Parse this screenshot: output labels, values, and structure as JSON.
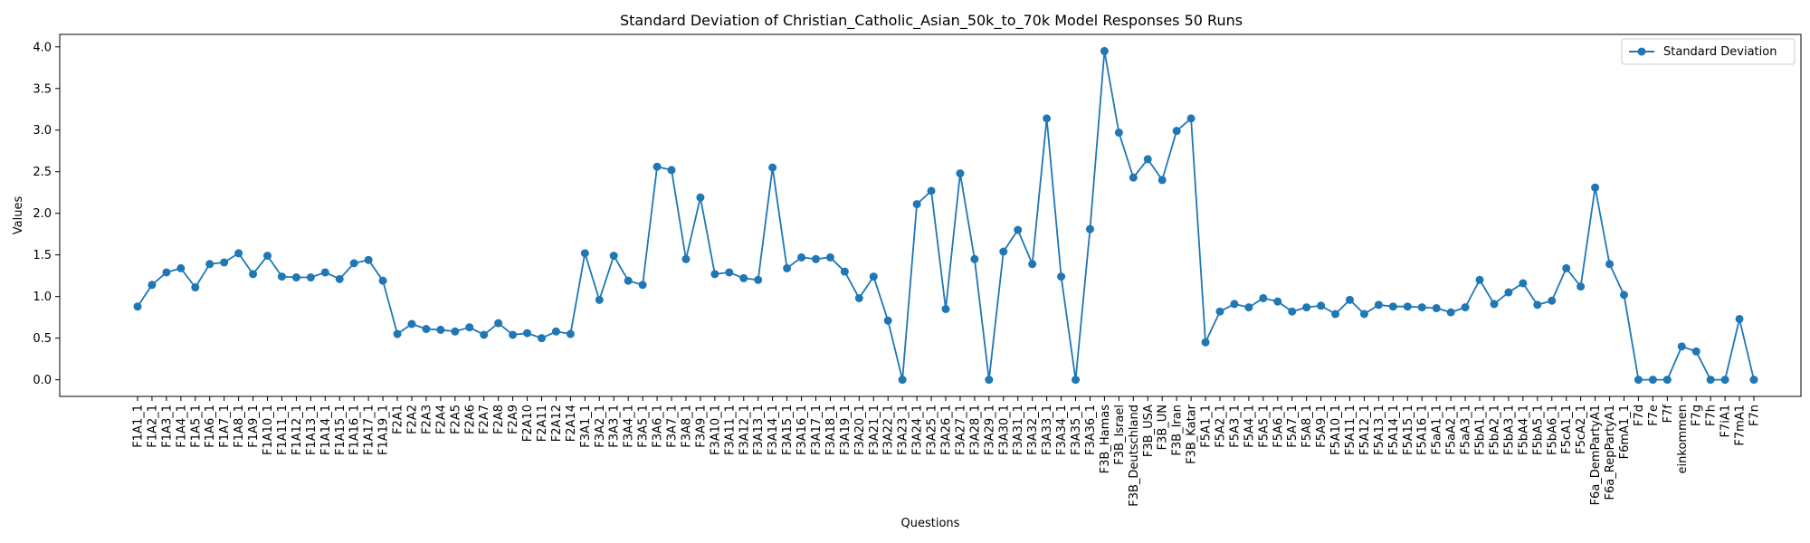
{
  "chart_data": {
    "type": "line",
    "title": "Standard Deviation of Christian_Catholic_Asian_50k_to_70k Model Responses 50 Runs",
    "xlabel": "Questions",
    "ylabel": "Values",
    "ylim": [
      -0.2,
      4.15
    ],
    "yticks": [
      0.0,
      0.5,
      1.0,
      1.5,
      2.0,
      2.5,
      3.0,
      3.5,
      4.0
    ],
    "ytick_labels": [
      "0.0",
      "0.5",
      "1.0",
      "1.5",
      "2.0",
      "2.5",
      "3.0",
      "3.5",
      "4.0"
    ],
    "legend_position": "top-right",
    "grid": false,
    "colors": {
      "line": "#1f77b4",
      "axes": "#000000",
      "background": "#ffffff"
    },
    "categories": [
      "F1A1_1",
      "F1A2_1",
      "F1A3_1",
      "F1A4_1",
      "F1A5_1",
      "F1A6_1",
      "F1A7_1",
      "F1A8_1",
      "F1A9_1",
      "F1A10_1",
      "F1A11_1",
      "F1A12_1",
      "F1A13_1",
      "F1A14_1",
      "F1A15_1",
      "F1A16_1",
      "F1A17_1",
      "F1A19_1",
      "F2A1",
      "F2A2",
      "F2A3",
      "F2A4",
      "F2A5",
      "F2A6",
      "F2A7",
      "F2A8",
      "F2A9",
      "F2A10",
      "F2A11",
      "F2A12",
      "F2A14",
      "F3A1_1",
      "F3A2_1",
      "F3A3_1",
      "F3A4_1",
      "F3A5_1",
      "F3A6_1",
      "F3A7_1",
      "F3A8_1",
      "F3A9_1",
      "F3A10_1",
      "F3A11_1",
      "F3A12_1",
      "F3A13_1",
      "F3A14_1",
      "F3A15_1",
      "F3A16_1",
      "F3A17_1",
      "F3A18_1",
      "F3A19_1",
      "F3A20_1",
      "F3A21_1",
      "F3A22_1",
      "F3A23_1",
      "F3A24_1",
      "F3A25_1",
      "F3A26_1",
      "F3A27_1",
      "F3A28_1",
      "F3A29_1",
      "F3A30_1",
      "F3A31_1",
      "F3A32_1",
      "F3A33_1",
      "F3A34_1",
      "F3A35_1",
      "F3A36_1",
      "F3B_Hamas",
      "F3B_Israel",
      "F3B_Deutschland",
      "F3B_USA",
      "F3B_UN",
      "F3B_Iran",
      "F3B_Katar",
      "F5A1_1",
      "F5A2_1",
      "F5A3_1",
      "F5A4_1",
      "F5A5_1",
      "F5A6_1",
      "F5A7_1",
      "F5A8_1",
      "F5A9_1",
      "F5A10_1",
      "F5A11_1",
      "F5A12_1",
      "F5A13_1",
      "F5A14_1",
      "F5A15_1",
      "F5A16_1",
      "F5aA1_1",
      "F5aA2_1",
      "F5aA3_1",
      "F5bA1_1",
      "F5bA2_1",
      "F5bA3_1",
      "F5bA4_1",
      "F5bA5_1",
      "F5bA6_1",
      "F5cA1_1",
      "F5cA2_1",
      "F6a_DemPartyA1",
      "F6a_RepPartyA1",
      "F6mA1_1",
      "F7d",
      "F7e",
      "F7f",
      "einkommen",
      "F7g",
      "F7h",
      "F7iA1",
      "F7mA1",
      "F7n"
    ],
    "series": [
      {
        "name": "Standard Deviation",
        "values": [
          0.88,
          1.14,
          1.29,
          1.34,
          1.11,
          1.39,
          1.41,
          1.52,
          1.27,
          1.49,
          1.24,
          1.23,
          1.23,
          1.29,
          1.21,
          1.4,
          1.44,
          1.19,
          0.55,
          0.67,
          0.61,
          0.6,
          0.58,
          0.63,
          0.54,
          0.68,
          0.54,
          0.56,
          0.5,
          0.58,
          0.55,
          1.52,
          0.96,
          1.49,
          1.19,
          1.14,
          2.56,
          2.52,
          1.45,
          2.19,
          1.27,
          1.29,
          1.22,
          1.2,
          2.55,
          1.34,
          1.47,
          1.45,
          1.47,
          1.3,
          0.98,
          1.24,
          0.71,
          0.0,
          2.11,
          2.27,
          0.85,
          2.48,
          1.45,
          0.0,
          1.54,
          1.8,
          1.39,
          3.14,
          1.24,
          0.0,
          1.81,
          3.95,
          2.97,
          2.43,
          2.65,
          2.4,
          2.99,
          3.14,
          0.45,
          0.82,
          0.91,
          0.87,
          0.98,
          0.94,
          0.82,
          0.87,
          0.89,
          0.79,
          0.96,
          0.79,
          0.9,
          0.88,
          0.88,
          0.87,
          0.86,
          0.81,
          0.87,
          1.2,
          0.91,
          1.05,
          1.16,
          0.9,
          0.95,
          1.34,
          1.12,
          2.31,
          1.39,
          1.02,
          0.0,
          0.0,
          0.0,
          0.4,
          0.34,
          0.0,
          0.0,
          0.73,
          0.0
        ]
      }
    ]
  }
}
